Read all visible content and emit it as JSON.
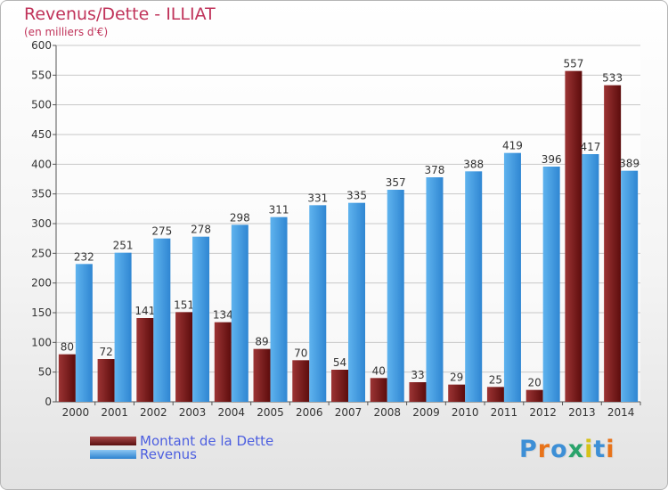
{
  "chart_data": {
    "type": "bar",
    "title": "Revenus/Dette - ILLIAT",
    "subtitle": "(en milliers d'€)",
    "categories": [
      "2000",
      "2001",
      "2002",
      "2003",
      "2004",
      "2005",
      "2006",
      "2007",
      "2008",
      "2009",
      "2010",
      "2011",
      "2012",
      "2013",
      "2014"
    ],
    "series": [
      {
        "name": "Montant de la Dette",
        "color": "#7d1f1f",
        "values": [
          80,
          72,
          141,
          151,
          134,
          89,
          70,
          54,
          40,
          33,
          29,
          25,
          20,
          557,
          533
        ],
        "labels": [
          "80",
          "72",
          "141",
          "151",
          "134",
          "89",
          "70",
          "54",
          "40",
          "33",
          "29",
          "25",
          "20",
          "557",
          "533"
        ]
      },
      {
        "name": "Revenus",
        "color": "#4aa3e8",
        "values": [
          232,
          251,
          275,
          278,
          298,
          311,
          331,
          335,
          357,
          378,
          388,
          419,
          396,
          417,
          389
        ],
        "labels": [
          "232",
          "251",
          "275",
          "278",
          "298",
          "311",
          "331",
          "335",
          "357",
          "378",
          "388",
          "419",
          "396",
          "417",
          "389"
        ]
      }
    ],
    "ylim": [
      0,
      600
    ],
    "yticks": [
      "0",
      "50",
      "100",
      "150",
      "200",
      "250",
      "300",
      "350",
      "400",
      "450",
      "500",
      "550",
      "600"
    ],
    "grid": true,
    "legend": "bottom-left"
  },
  "logo": {
    "text": "Proxiti",
    "colors": [
      "#3d8fd6",
      "#e8731a",
      "#3d8fd6",
      "#2aa36b",
      "#d6c21a",
      "#3d8fd6",
      "#e8731a"
    ]
  }
}
